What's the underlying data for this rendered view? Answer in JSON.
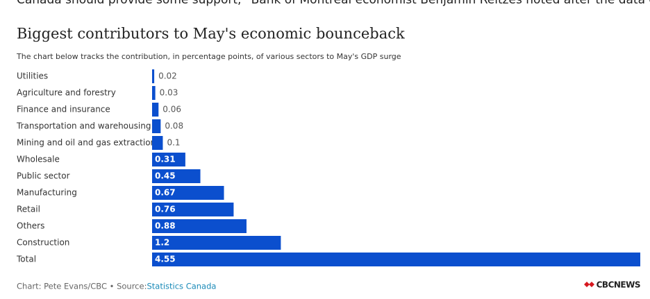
{
  "intro_text": "Canada should provide some support,” Bank of Montreal economist Benjamin Reitzes noted after the data came out.",
  "chart_data": {
    "type": "bar",
    "orientation": "horizontal",
    "title": "Biggest contributors to May's economic bounceback",
    "subtitle": "The chart below tracks the contribution, in percentage points, of various sectors to May's GDP surge",
    "categories": [
      "Utilities",
      "Agriculture and forestry",
      "Finance and insurance",
      "Transportation and warehousing",
      "Mining and oil and gas extraction",
      "Wholesale",
      "Public sector",
      "Manufacturing",
      "Retail",
      "Others",
      "Construction",
      "Total"
    ],
    "values": [
      0.02,
      0.03,
      0.06,
      0.08,
      0.1,
      0.31,
      0.45,
      0.67,
      0.76,
      0.88,
      1.2,
      4.55
    ],
    "color": "#0b4fce",
    "credit": "Chart: Pete Evans/CBC • Source: ",
    "source_link": "Statistics Canada",
    "logo": "CBCNEWS"
  }
}
